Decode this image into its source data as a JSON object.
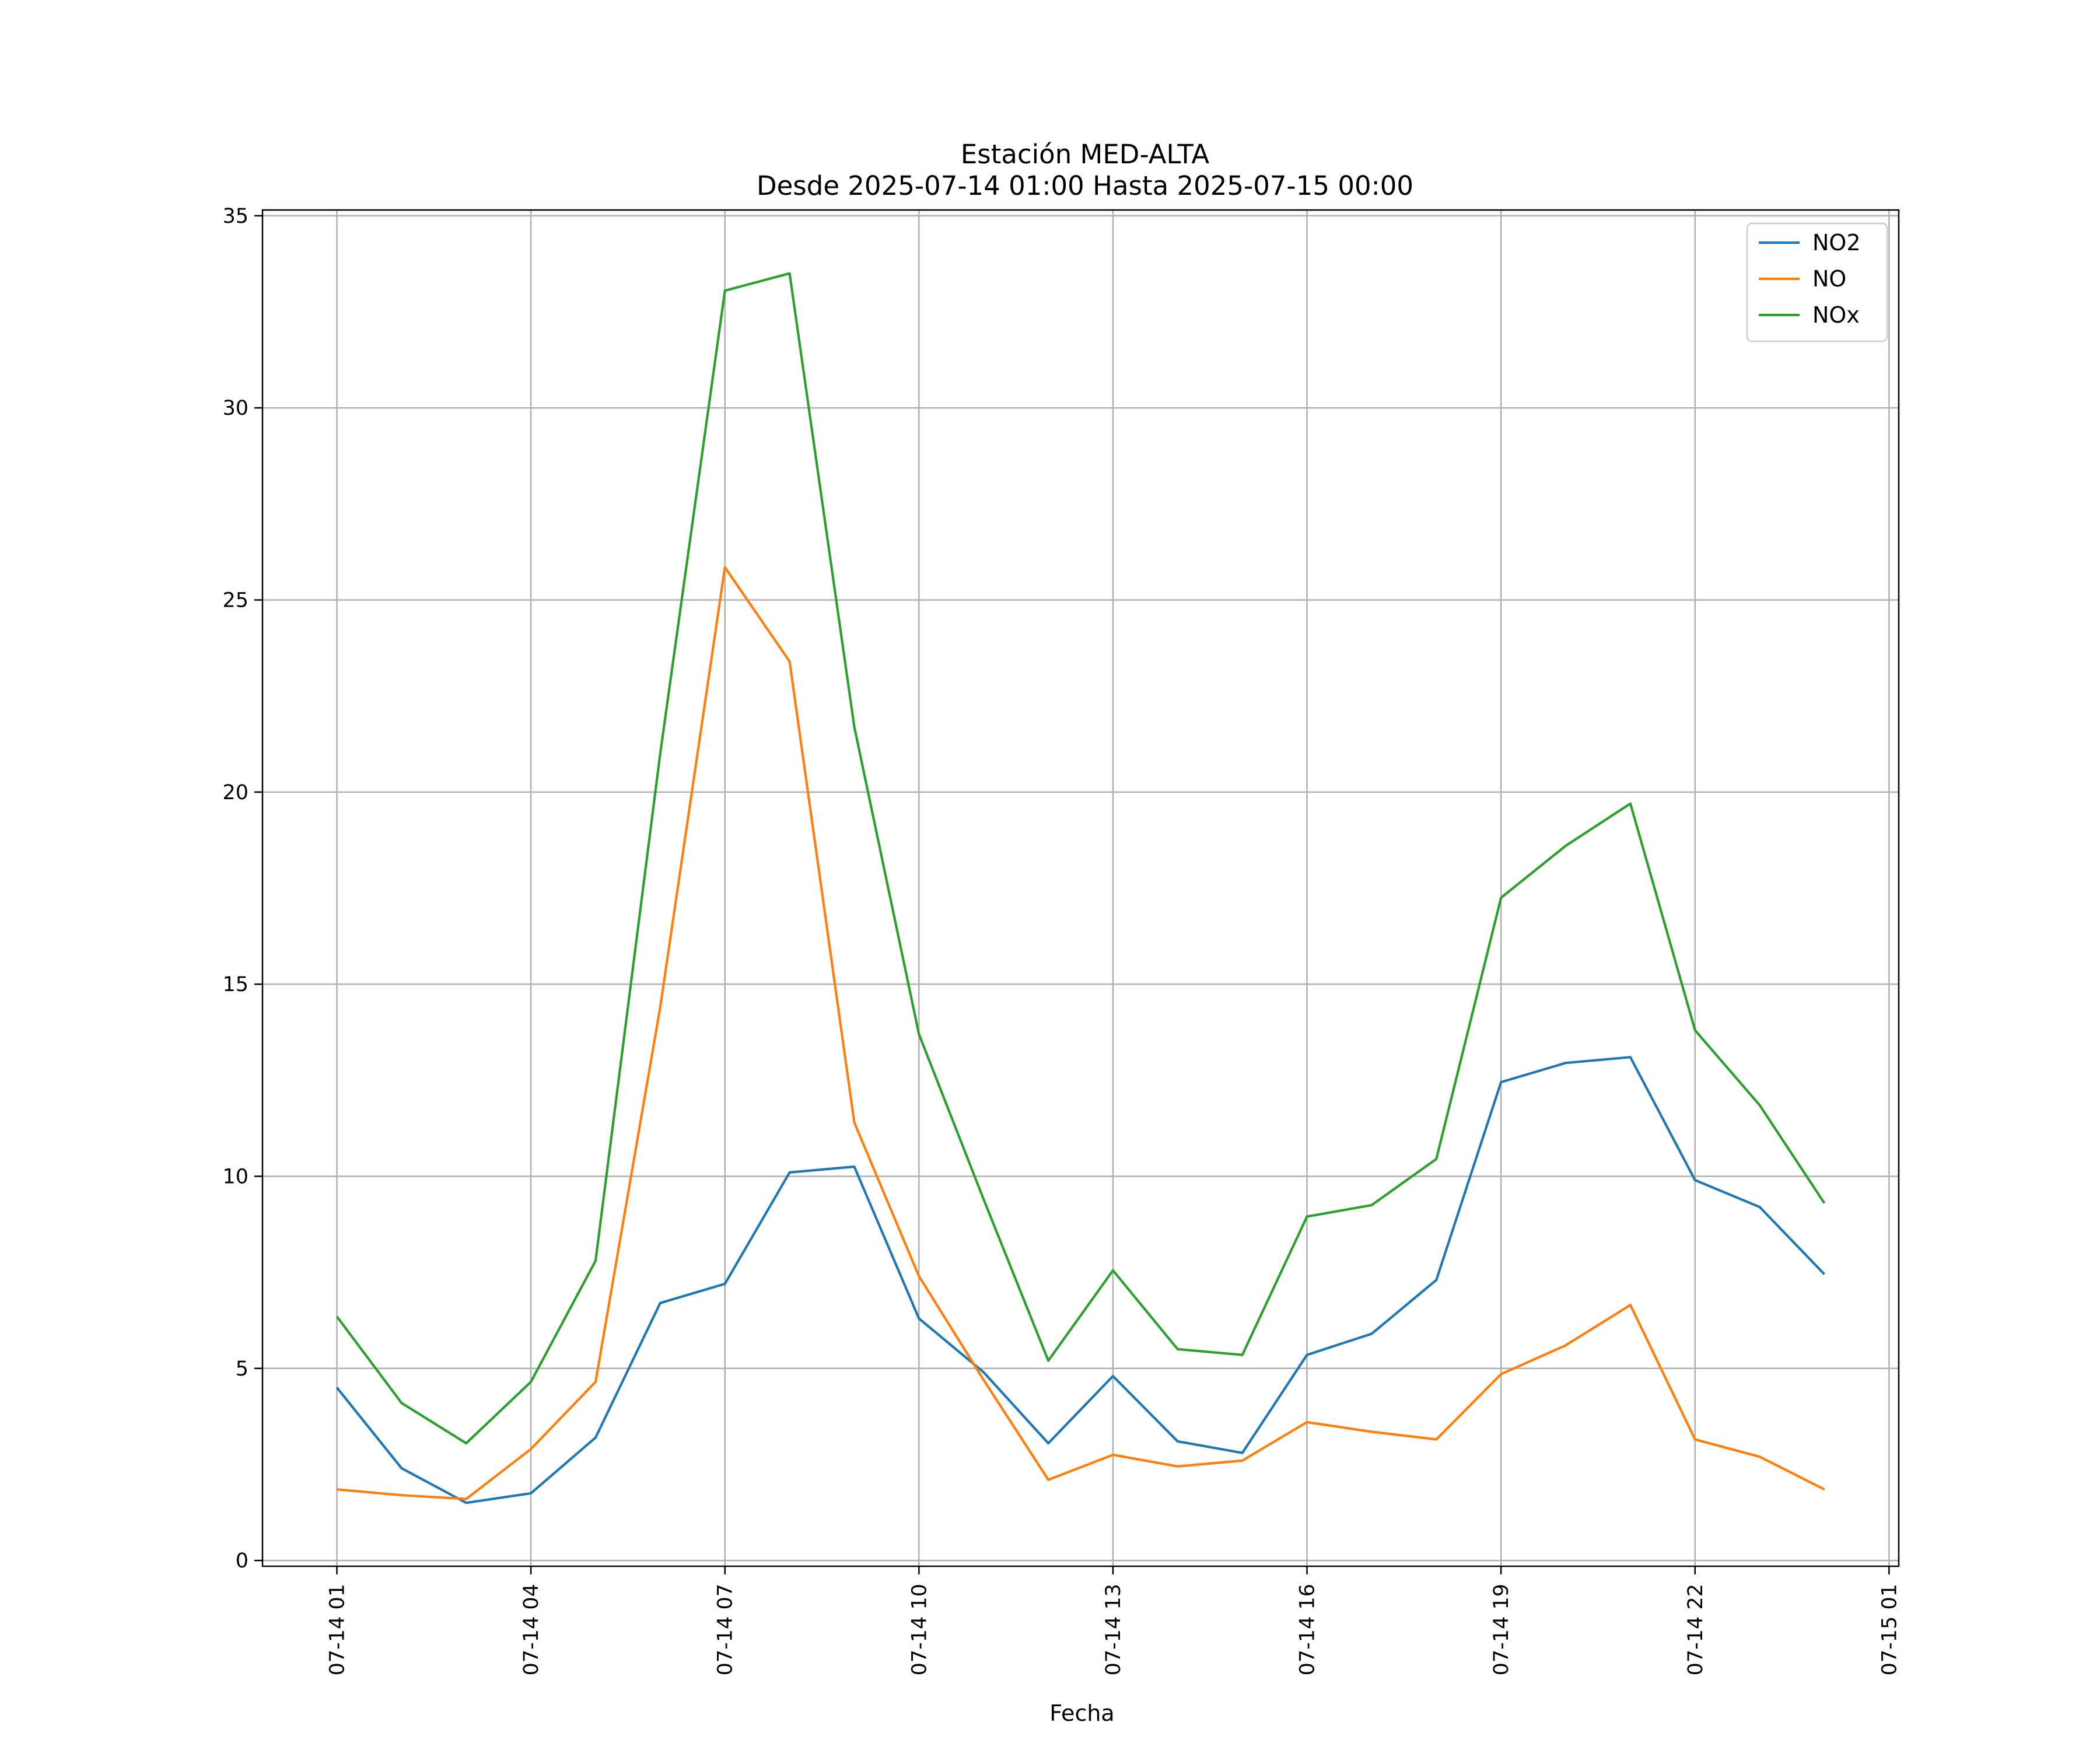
{
  "chart_data": {
    "type": "line",
    "title": "Estación MED-ALTA",
    "subtitle": "Desde 2025-07-14 01:00 Hasta 2025-07-15 00:00",
    "xlabel": "Fecha",
    "ylabel": "",
    "x": [
      "2025-07-14 01:00",
      "2025-07-14 02:00",
      "2025-07-14 03:00",
      "2025-07-14 04:00",
      "2025-07-14 05:00",
      "2025-07-14 06:00",
      "2025-07-14 07:00",
      "2025-07-14 08:00",
      "2025-07-14 09:00",
      "2025-07-14 10:00",
      "2025-07-14 11:00",
      "2025-07-14 12:00",
      "2025-07-14 13:00",
      "2025-07-14 14:00",
      "2025-07-14 15:00",
      "2025-07-14 16:00",
      "2025-07-14 17:00",
      "2025-07-14 18:00",
      "2025-07-14 19:00",
      "2025-07-14 20:00",
      "2025-07-14 21:00",
      "2025-07-14 22:00",
      "2025-07-14 23:00",
      "2025-07-15 00:00"
    ],
    "x_ticks": [
      "07-14 01",
      "07-14 04",
      "07-14 07",
      "07-14 10",
      "07-14 13",
      "07-14 16",
      "07-14 19",
      "07-14 22",
      "07-15 01"
    ],
    "y_ticks": [
      0,
      5,
      10,
      15,
      20,
      25,
      30,
      35
    ],
    "ylim": [
      -0.15,
      35.15
    ],
    "grid": true,
    "legend_position": "top-right",
    "series": [
      {
        "name": "NO2",
        "color": "#1f77b4",
        "values": [
          4.5,
          2.4,
          1.5,
          1.75,
          3.2,
          6.7,
          7.2,
          10.1,
          10.25,
          6.3,
          4.9,
          3.05,
          4.8,
          3.1,
          2.8,
          5.35,
          5.9,
          7.3,
          12.45,
          12.95,
          13.1,
          9.9,
          9.2,
          7.45
        ]
      },
      {
        "name": "NO",
        "color": "#ff7f0e",
        "values": [
          1.85,
          1.7,
          1.6,
          2.9,
          4.65,
          14.4,
          25.85,
          23.4,
          11.4,
          7.4,
          4.7,
          2.1,
          2.75,
          2.45,
          2.6,
          3.6,
          3.35,
          3.15,
          4.85,
          5.6,
          6.65,
          3.15,
          2.7,
          1.85
        ]
      },
      {
        "name": "NOx",
        "color": "#2ca02c",
        "values": [
          6.35,
          4.1,
          3.05,
          4.65,
          7.8,
          21.0,
          33.05,
          33.5,
          21.7,
          13.7,
          9.4,
          5.2,
          7.55,
          5.5,
          5.35,
          8.95,
          9.25,
          10.45,
          17.25,
          18.6,
          19.7,
          13.8,
          11.85,
          9.3
        ]
      }
    ]
  }
}
